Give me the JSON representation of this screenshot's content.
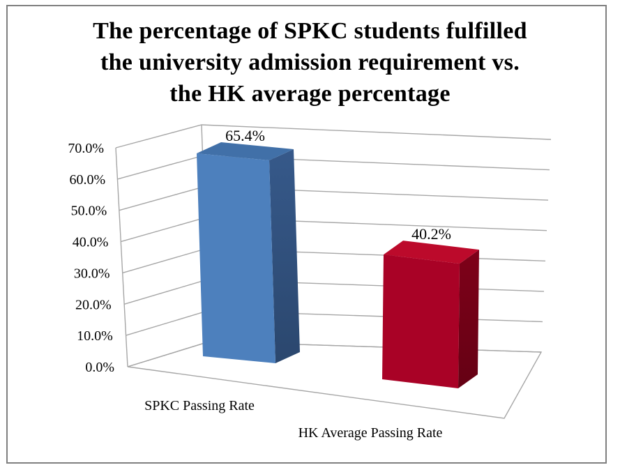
{
  "figure": {
    "title_lines": [
      "The percentage of SPKC students fulfilled",
      "the university admission requirement vs.",
      "the HK average percentage"
    ]
  },
  "chart_data": {
    "type": "bar",
    "projection": "3d",
    "title": "The percentage of SPKC students fulfilled the university admission requirement vs. the HK average percentage",
    "categories": [
      "SPKC Passing Rate",
      "HK Average Passing Rate"
    ],
    "values": [
      65.4,
      40.2
    ],
    "data_labels": [
      "65.4%",
      "40.2%"
    ],
    "yticks": [
      "0.0%",
      "10.0%",
      "20.0%",
      "30.0%",
      "40.0%",
      "50.0%",
      "60.0%",
      "70.0%"
    ],
    "ylim": [
      0,
      70
    ],
    "xlabel": "",
    "ylabel": "",
    "grid": true,
    "legend": false,
    "gridline_color": "#a6a6a6",
    "text_color": "#000000",
    "bar_colors": [
      {
        "front": "#4d80bd",
        "top": "#4170a8",
        "side": "#36598a"
      },
      {
        "front": "#a90226",
        "top": "#bc0a2b",
        "side": "#7e0119"
      }
    ]
  }
}
